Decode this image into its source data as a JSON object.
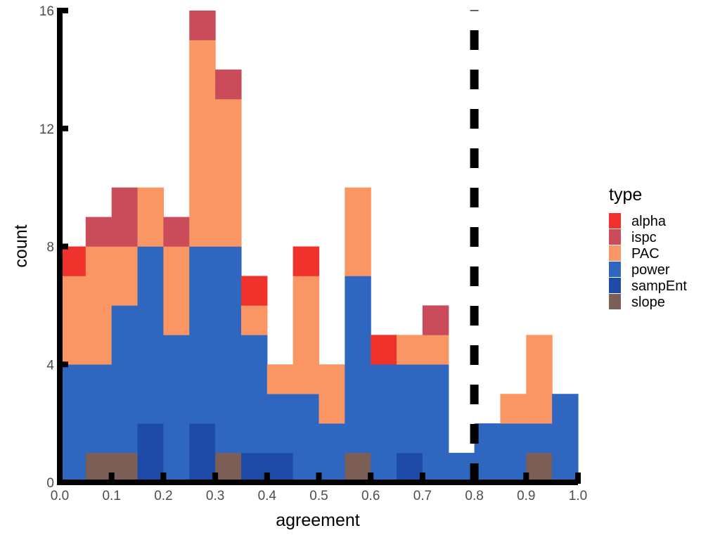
{
  "chart_data": {
    "type": "bar",
    "stacked": true,
    "bin_width": 0.05,
    "x_bins": [
      0.0,
      0.05,
      0.1,
      0.15,
      0.2,
      0.25,
      0.3,
      0.35,
      0.4,
      0.45,
      0.5,
      0.55,
      0.6,
      0.65,
      0.7,
      0.75,
      0.8,
      0.85,
      0.9,
      0.95
    ],
    "series": [
      {
        "name": "slope",
        "color": "#7b5f57",
        "values": [
          0,
          1,
          1,
          0,
          0,
          0,
          1,
          0,
          0,
          0,
          0,
          1,
          0,
          0,
          0,
          0,
          0,
          0,
          1,
          0
        ]
      },
      {
        "name": "sampEnt",
        "color": "#1f4ba8",
        "values": [
          0,
          0,
          0,
          2,
          0,
          2,
          0,
          1,
          1,
          0,
          0,
          0,
          0,
          1,
          0,
          0,
          0,
          0,
          0,
          0
        ]
      },
      {
        "name": "power",
        "color": "#2e66c0",
        "values": [
          4,
          3,
          5,
          6,
          5,
          6,
          7,
          4,
          2,
          3,
          2,
          6,
          4,
          3,
          4,
          1,
          2,
          2,
          1,
          3
        ]
      },
      {
        "name": "PAC",
        "color": "#fa9664",
        "values": [
          3,
          4,
          2,
          2,
          3,
          7,
          5,
          1,
          1,
          4,
          2,
          3,
          0,
          1,
          1,
          0,
          0,
          1,
          3,
          0
        ]
      },
      {
        "name": "ispc",
        "color": "#ca4c5a",
        "values": [
          0,
          1,
          2,
          0,
          1,
          1,
          1,
          0,
          0,
          0,
          0,
          0,
          0,
          0,
          1,
          0,
          0,
          0,
          0,
          0
        ]
      },
      {
        "name": "alpha",
        "color": "#f0322d",
        "values": [
          1,
          0,
          0,
          0,
          0,
          0,
          0,
          1,
          0,
          1,
          0,
          0,
          1,
          0,
          0,
          0,
          0,
          0,
          0,
          0
        ]
      }
    ],
    "legend_order": [
      "alpha",
      "ispc",
      "PAC",
      "power",
      "sampEnt",
      "slope"
    ],
    "xlim": [
      0.0,
      1.0
    ],
    "ylim": [
      0,
      16
    ],
    "x_ticks": [
      0.0,
      0.1,
      0.2,
      0.3,
      0.4,
      0.5,
      0.6,
      0.7,
      0.8,
      0.9,
      1.0
    ],
    "x_tick_labels": [
      "0.0",
      "0.1",
      "0.2",
      "0.3",
      "0.4",
      "0.5",
      "0.6",
      "0.7",
      "0.8",
      "0.9",
      "1.0"
    ],
    "y_ticks": [
      0,
      4,
      8,
      12,
      16
    ],
    "y_tick_labels": [
      "0",
      "4",
      "8",
      "12",
      "16"
    ],
    "xlabel": "agreement",
    "ylabel": "count",
    "legend_title": "type",
    "legend_position": "right",
    "grid": false,
    "reference_line": {
      "x": 0.8,
      "style": "dashed",
      "color": "#000000"
    }
  }
}
